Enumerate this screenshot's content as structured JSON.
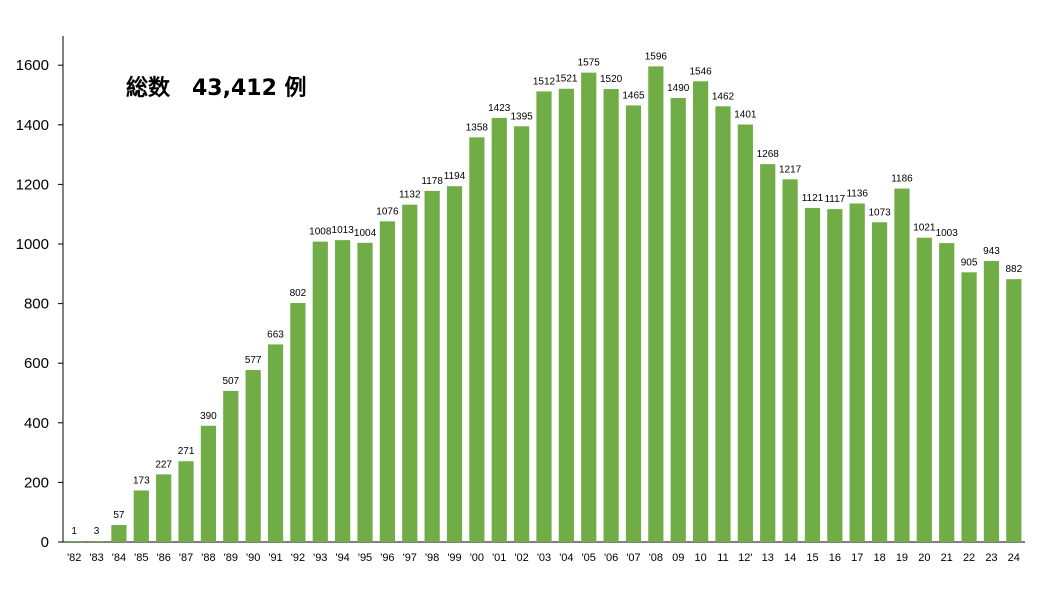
{
  "chart_data": {
    "type": "bar",
    "title": "総数　43,412 例",
    "xlabel": "",
    "ylabel": "",
    "ylim": [
      0,
      1700
    ],
    "yticks": [
      0,
      200,
      400,
      600,
      800,
      1000,
      1200,
      1400,
      1600
    ],
    "bar_color": "#70ad47",
    "categories": [
      "'82",
      "'83",
      "'84",
      "'85",
      "'86",
      "'87",
      "'88",
      "'89",
      "'90",
      "'91",
      "'92",
      "'93",
      "'94",
      "'95",
      "'96",
      "'97",
      "'98",
      "'99",
      "'00",
      "'01",
      "'02",
      "'03",
      "'04",
      "'05",
      "'06",
      "'07",
      "'08",
      "09",
      "10",
      "11",
      "12'",
      "13",
      "14",
      "15",
      "16",
      "17",
      "18",
      "19",
      "20",
      "21",
      "22",
      "23",
      "24"
    ],
    "values": [
      1,
      3,
      57,
      173,
      227,
      271,
      390,
      507,
      577,
      663,
      802,
      1008,
      1013,
      1004,
      1076,
      1132,
      1178,
      1194,
      1358,
      1423,
      1395,
      1512,
      1521,
      1575,
      1520,
      1465,
      1596,
      1490,
      1546,
      1462,
      1401,
      1268,
      1217,
      1121,
      1117,
      1136,
      1073,
      1186,
      1021,
      1003,
      905,
      943,
      882
    ]
  }
}
